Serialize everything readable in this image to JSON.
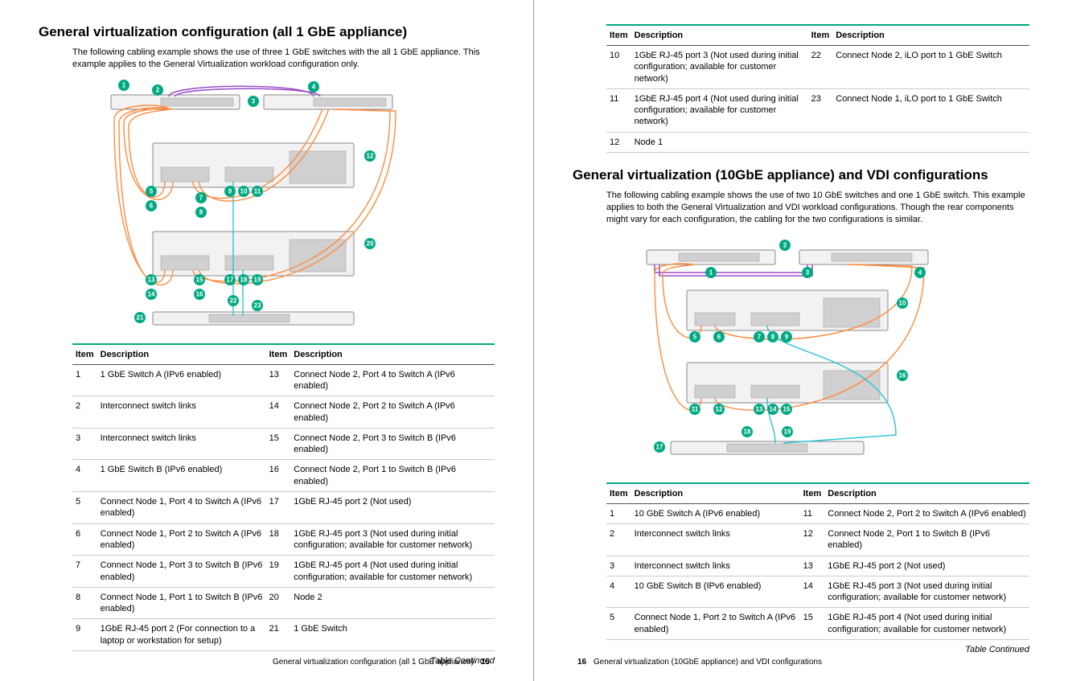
{
  "colors": {
    "accent": "#01a982",
    "cable_orange": "#ff8a3d",
    "cable_purple": "#9b4fc7",
    "cable_cyan": "#28c4d8",
    "box_fill": "#f2f2f2",
    "box_stroke": "#888888"
  },
  "left": {
    "title": "General virtualization configuration (all 1 GbE appliance)",
    "intro": "The following cabling example shows the use of three 1 GbE switches with the all 1 GbE appliance. This example applies to the General Virtualization workload configuration only.",
    "callouts": [
      "1",
      "2",
      "3",
      "4",
      "5",
      "6",
      "7",
      "8",
      "9",
      "10",
      "11",
      "12",
      "13",
      "14",
      "15",
      "16",
      "17",
      "18",
      "19",
      "20",
      "21",
      "22",
      "23"
    ],
    "table": {
      "headers": [
        "Item",
        "Description",
        "Item",
        "Description"
      ],
      "rows": [
        [
          "1",
          "1 GbE Switch A (IPv6 enabled)",
          "13",
          "Connect Node 2, Port 4 to Switch A (IPv6 enabled)"
        ],
        [
          "2",
          "Interconnect switch links",
          "14",
          "Connect Node 2, Port 2 to Switch A (IPv6 enabled)"
        ],
        [
          "3",
          "Interconnect switch links",
          "15",
          "Connect Node 2, Port 3 to Switch B (IPv6 enabled)"
        ],
        [
          "4",
          "1 GbE Switch B (IPv6 enabled)",
          "16",
          "Connect Node 2, Port 1 to Switch B (IPv6 enabled)"
        ],
        [
          "5",
          "Connect Node 1, Port 4 to Switch A (IPv6 enabled)",
          "17",
          "1GbE RJ-45 port 2 (Not used)"
        ],
        [
          "6",
          "Connect Node 1, Port 2 to Switch A (IPv6 enabled)",
          "18",
          "1GbE RJ-45 port 3 (Not used during initial configuration; available for customer network)"
        ],
        [
          "7",
          "Connect Node 1, Port 3 to Switch B (IPv6 enabled)",
          "19",
          "1GbE RJ-45 port 4 (Not used during initial configuration; available for customer network)"
        ],
        [
          "8",
          "Connect Node 1, Port 1 to Switch B (IPv6 enabled)",
          "20",
          "Node 2"
        ],
        [
          "9",
          "1GbE RJ-45 port 2 (For connection to a laptop or workstation for setup)",
          "21",
          "1 GbE Switch"
        ]
      ]
    },
    "continued": "Table Continued",
    "footer_text": "General virtualization configuration (all 1 GbE appliance)",
    "page_num": "15"
  },
  "right": {
    "top_table": {
      "headers": [
        "Item",
        "Description",
        "Item",
        "Description"
      ],
      "rows": [
        [
          "10",
          "1GbE RJ-45 port 3 (Not used during initial configuration; available for customer network)",
          "22",
          "Connect Node 2, iLO port to 1 GbE Switch"
        ],
        [
          "11",
          "1GbE RJ-45 port 4 (Not used during initial configuration; available for customer network)",
          "23",
          "Connect Node 1, iLO port to 1 GbE Switch"
        ],
        [
          "12",
          "Node 1",
          "",
          ""
        ]
      ]
    },
    "title": "General virtualization (10GbE appliance) and VDI configurations",
    "intro": "The following cabling example shows the use of two 10 GbE switches and one 1 GbE switch. This example applies to both the General Virtualization and VDI workload configurations. Though the rear components might vary for each configuration, the cabling for the two configurations is similar.",
    "callouts": [
      "1",
      "2",
      "3",
      "4",
      "5",
      "6",
      "7",
      "8",
      "9",
      "10",
      "11",
      "12",
      "13",
      "14",
      "15",
      "16",
      "17",
      "18",
      "19"
    ],
    "table": {
      "headers": [
        "Item",
        "Description",
        "Item",
        "Description"
      ],
      "rows": [
        [
          "1",
          "10 GbE Switch A (IPv6 enabled)",
          "11",
          "Connect Node 2, Port 2 to Switch A (IPv6 enabled)"
        ],
        [
          "2",
          "Interconnect switch links",
          "12",
          "Connect Node 2, Port 1 to Switch B (IPv6 enabled)"
        ],
        [
          "3",
          "Interconnect switch links",
          "13",
          "1GbE RJ-45 port 2 (Not used)"
        ],
        [
          "4",
          "10 GbE Switch B (IPv6 enabled)",
          "14",
          "1GbE RJ-45 port 3 (Not used during initial configuration; available for customer network)"
        ],
        [
          "5",
          "Connect Node 1, Port 2 to Switch A (IPv6 enabled)",
          "15",
          "1GbE RJ-45 port 4 (Not used during initial configuration; available for customer network)"
        ]
      ]
    },
    "continued": "Table Continued",
    "footer_text": "General virtualization (10GbE appliance) and VDI configurations",
    "page_num": "16"
  }
}
